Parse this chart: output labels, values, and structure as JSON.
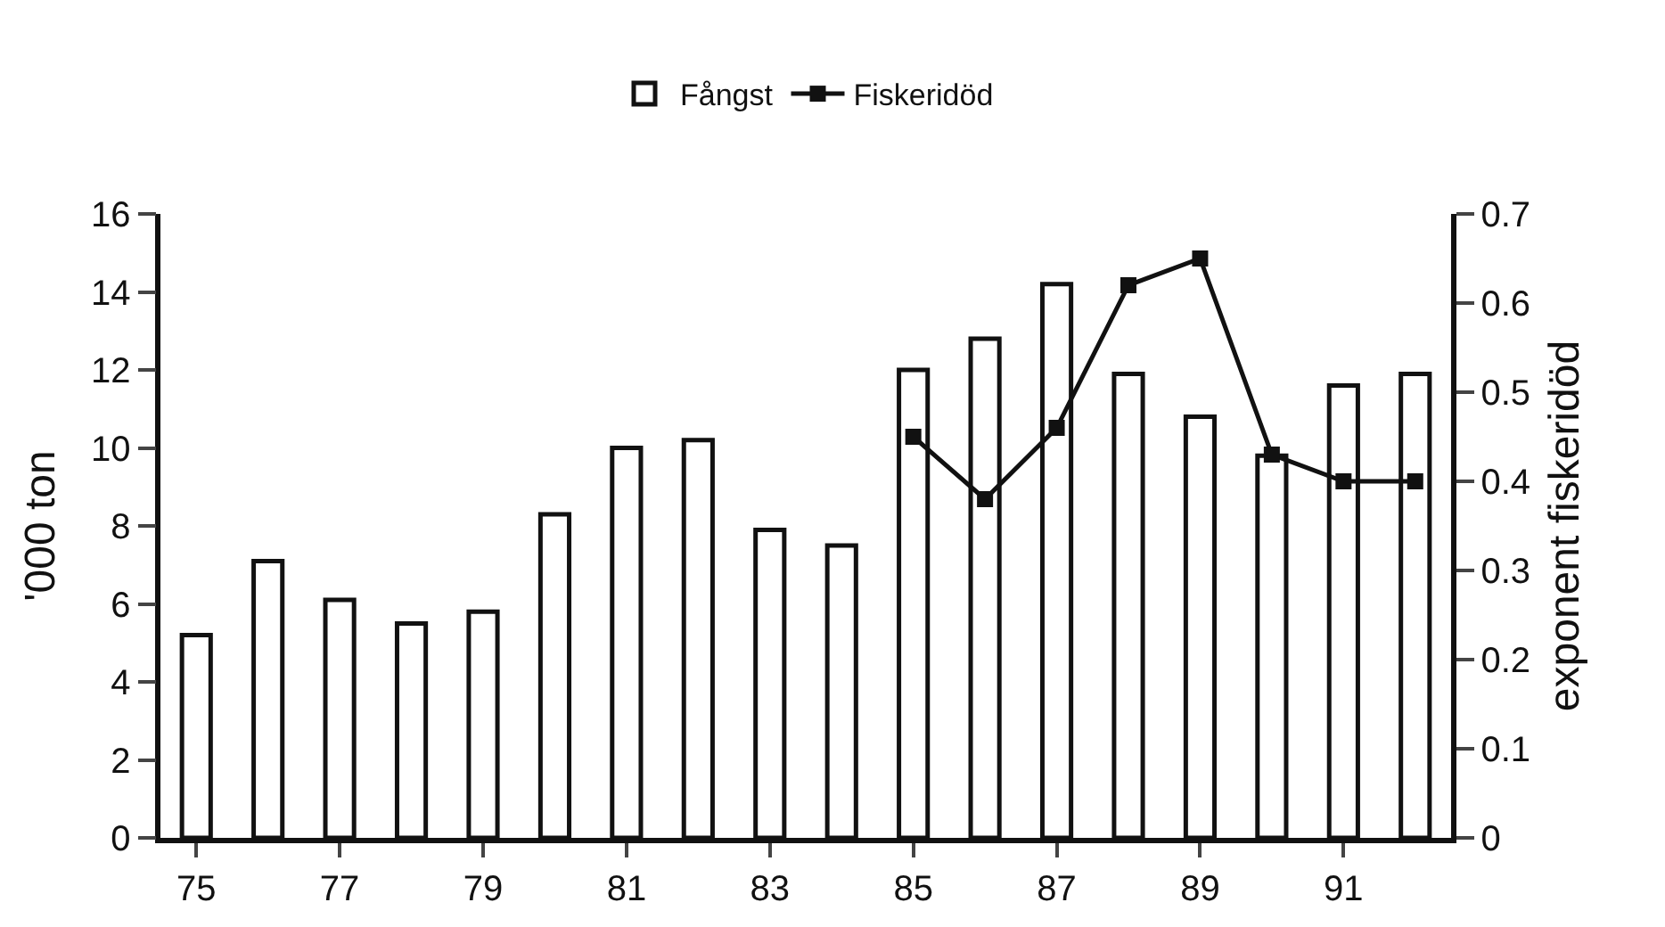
{
  "chart_data": {
    "type": "bar",
    "categories": [
      "75",
      null,
      "77",
      null,
      "79",
      null,
      "81",
      null,
      "83",
      null,
      "85",
      null,
      "87",
      null,
      "89",
      null,
      "91",
      null
    ],
    "series": [
      {
        "name": "Fångst",
        "color": "#ffffff",
        "values": [
          5.2,
          7.1,
          6.1,
          5.5,
          5.8,
          8.3,
          10.0,
          10.2,
          7.9,
          7.5,
          12.0,
          12.8,
          14.2,
          11.9,
          10.8,
          9.8,
          11.6,
          11.9
        ]
      },
      {
        "name": "Fiskeridöd",
        "type": "line",
        "axis": "y2",
        "color": "#111111",
        "marker": "square",
        "values": [
          null,
          null,
          null,
          null,
          null,
          null,
          null,
          null,
          null,
          null,
          0.45,
          0.38,
          0.46,
          0.62,
          0.65,
          0.43,
          0.4,
          0.4
        ]
      }
    ],
    "ylabel": "'000 ton",
    "y2label": "exponent fiskeridöd",
    "ylim": [
      0,
      16
    ],
    "yticks": [
      0,
      2,
      4,
      6,
      8,
      10,
      12,
      14,
      16
    ],
    "y2lim": [
      0,
      0.7
    ],
    "y2ticks": [
      0,
      0.1,
      0.2,
      0.3,
      0.4,
      0.5,
      0.6,
      0.7
    ],
    "legend": "top",
    "grid": false
  }
}
